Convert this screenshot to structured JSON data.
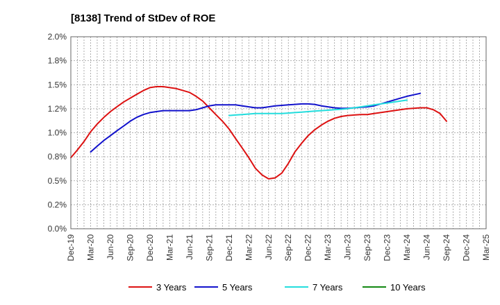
{
  "chart_data": {
    "type": "line",
    "title": "[8138]  Trend of StDev of ROE",
    "xlabel": "",
    "ylabel": "",
    "ylim": [
      0,
      2.0
    ],
    "yticks": [
      0.0,
      0.25,
      0.5,
      0.75,
      1.0,
      1.25,
      1.5,
      1.75,
      2.0
    ],
    "ytick_labels": [
      "0.0%",
      "0.2%",
      "0.5%",
      "0.8%",
      "1.0%",
      "1.2%",
      "1.5%",
      "1.8%",
      "2.0%"
    ],
    "categories": [
      "Dec-19",
      "Mar-20",
      "Jun-20",
      "Sep-20",
      "Dec-20",
      "Mar-21",
      "Jun-21",
      "Sep-21",
      "Dec-21",
      "Mar-22",
      "Jun-22",
      "Sep-22",
      "Dec-22",
      "Mar-23",
      "Jun-23",
      "Sep-23",
      "Dec-23",
      "Mar-24",
      "Jun-24",
      "Sep-24",
      "Dec-24",
      "Mar-25"
    ],
    "grid": true,
    "legend_position": "bottom",
    "series": [
      {
        "name": "3 Years",
        "color": "#dd1111",
        "points": [
          [
            0,
            0.74
          ],
          [
            0.33,
            0.82
          ],
          [
            0.67,
            0.91
          ],
          [
            1,
            1.01
          ],
          [
            1.33,
            1.09
          ],
          [
            1.67,
            1.16
          ],
          [
            2,
            1.22
          ],
          [
            2.33,
            1.27
          ],
          [
            2.67,
            1.32
          ],
          [
            3,
            1.36
          ],
          [
            3.33,
            1.4
          ],
          [
            3.67,
            1.44
          ],
          [
            4,
            1.47
          ],
          [
            4.33,
            1.48
          ],
          [
            4.67,
            1.48
          ],
          [
            5,
            1.47
          ],
          [
            5.33,
            1.46
          ],
          [
            5.67,
            1.44
          ],
          [
            6,
            1.42
          ],
          [
            6.33,
            1.38
          ],
          [
            6.67,
            1.33
          ],
          [
            7,
            1.26
          ],
          [
            7.33,
            1.19
          ],
          [
            7.67,
            1.12
          ],
          [
            8,
            1.04
          ],
          [
            8.33,
            0.94
          ],
          [
            8.67,
            0.84
          ],
          [
            9,
            0.74
          ],
          [
            9.33,
            0.63
          ],
          [
            9.67,
            0.56
          ],
          [
            10,
            0.52
          ],
          [
            10.33,
            0.53
          ],
          [
            10.67,
            0.58
          ],
          [
            11,
            0.68
          ],
          [
            11.33,
            0.8
          ],
          [
            11.67,
            0.89
          ],
          [
            12,
            0.97
          ],
          [
            12.33,
            1.03
          ],
          [
            12.67,
            1.08
          ],
          [
            13,
            1.12
          ],
          [
            13.33,
            1.15
          ],
          [
            13.67,
            1.17
          ],
          [
            14,
            1.18
          ],
          [
            14.33,
            1.185
          ],
          [
            14.67,
            1.19
          ],
          [
            15,
            1.19
          ],
          [
            15.33,
            1.2
          ],
          [
            15.67,
            1.21
          ],
          [
            16,
            1.22
          ],
          [
            16.33,
            1.23
          ],
          [
            16.67,
            1.24
          ],
          [
            17,
            1.25
          ],
          [
            17.33,
            1.255
          ],
          [
            17.67,
            1.26
          ],
          [
            18,
            1.26
          ],
          [
            18.33,
            1.24
          ],
          [
            18.67,
            1.2
          ],
          [
            19,
            1.12
          ]
        ]
      },
      {
        "name": "5 Years",
        "color": "#1111cc",
        "points": [
          [
            1,
            0.8
          ],
          [
            1.33,
            0.86
          ],
          [
            1.67,
            0.92
          ],
          [
            2,
            0.97
          ],
          [
            2.33,
            1.02
          ],
          [
            2.67,
            1.07
          ],
          [
            3,
            1.12
          ],
          [
            3.33,
            1.16
          ],
          [
            3.67,
            1.19
          ],
          [
            4,
            1.21
          ],
          [
            4.33,
            1.22
          ],
          [
            4.67,
            1.23
          ],
          [
            5,
            1.23
          ],
          [
            5.33,
            1.23
          ],
          [
            5.67,
            1.23
          ],
          [
            6,
            1.23
          ],
          [
            6.33,
            1.24
          ],
          [
            6.67,
            1.26
          ],
          [
            7,
            1.28
          ],
          [
            7.33,
            1.29
          ],
          [
            7.67,
            1.29
          ],
          [
            8,
            1.29
          ],
          [
            8.33,
            1.29
          ],
          [
            8.67,
            1.28
          ],
          [
            9,
            1.27
          ],
          [
            9.33,
            1.26
          ],
          [
            9.67,
            1.26
          ],
          [
            10,
            1.27
          ],
          [
            10.33,
            1.28
          ],
          [
            10.67,
            1.285
          ],
          [
            11,
            1.29
          ],
          [
            11.33,
            1.295
          ],
          [
            11.67,
            1.3
          ],
          [
            12,
            1.3
          ],
          [
            12.33,
            1.295
          ],
          [
            12.67,
            1.28
          ],
          [
            13,
            1.27
          ],
          [
            13.33,
            1.26
          ],
          [
            13.67,
            1.255
          ],
          [
            14,
            1.255
          ],
          [
            14.33,
            1.26
          ],
          [
            14.67,
            1.265
          ],
          [
            15,
            1.27
          ],
          [
            15.33,
            1.28
          ],
          [
            15.67,
            1.3
          ],
          [
            16,
            1.32
          ],
          [
            16.33,
            1.34
          ],
          [
            16.67,
            1.36
          ],
          [
            17,
            1.38
          ],
          [
            17.33,
            1.395
          ],
          [
            17.67,
            1.41
          ]
        ]
      },
      {
        "name": "7 Years",
        "color": "#22dddd",
        "points": [
          [
            8,
            1.18
          ],
          [
            8.33,
            1.185
          ],
          [
            8.67,
            1.19
          ],
          [
            9,
            1.195
          ],
          [
            9.33,
            1.2
          ],
          [
            9.67,
            1.2
          ],
          [
            10,
            1.2
          ],
          [
            10.33,
            1.2
          ],
          [
            10.67,
            1.2
          ],
          [
            11,
            1.205
          ],
          [
            11.33,
            1.21
          ],
          [
            11.67,
            1.215
          ],
          [
            12,
            1.22
          ],
          [
            12.33,
            1.225
          ],
          [
            12.67,
            1.23
          ],
          [
            13,
            1.235
          ],
          [
            13.33,
            1.24
          ],
          [
            13.67,
            1.245
          ],
          [
            14,
            1.25
          ],
          [
            14.33,
            1.26
          ],
          [
            14.67,
            1.27
          ],
          [
            15,
            1.28
          ],
          [
            15.33,
            1.29
          ],
          [
            15.67,
            1.3
          ],
          [
            16,
            1.31
          ],
          [
            16.33,
            1.32
          ],
          [
            16.67,
            1.33
          ],
          [
            17,
            1.34
          ]
        ]
      },
      {
        "name": "10 Years",
        "color": "#118811",
        "points": []
      }
    ]
  }
}
